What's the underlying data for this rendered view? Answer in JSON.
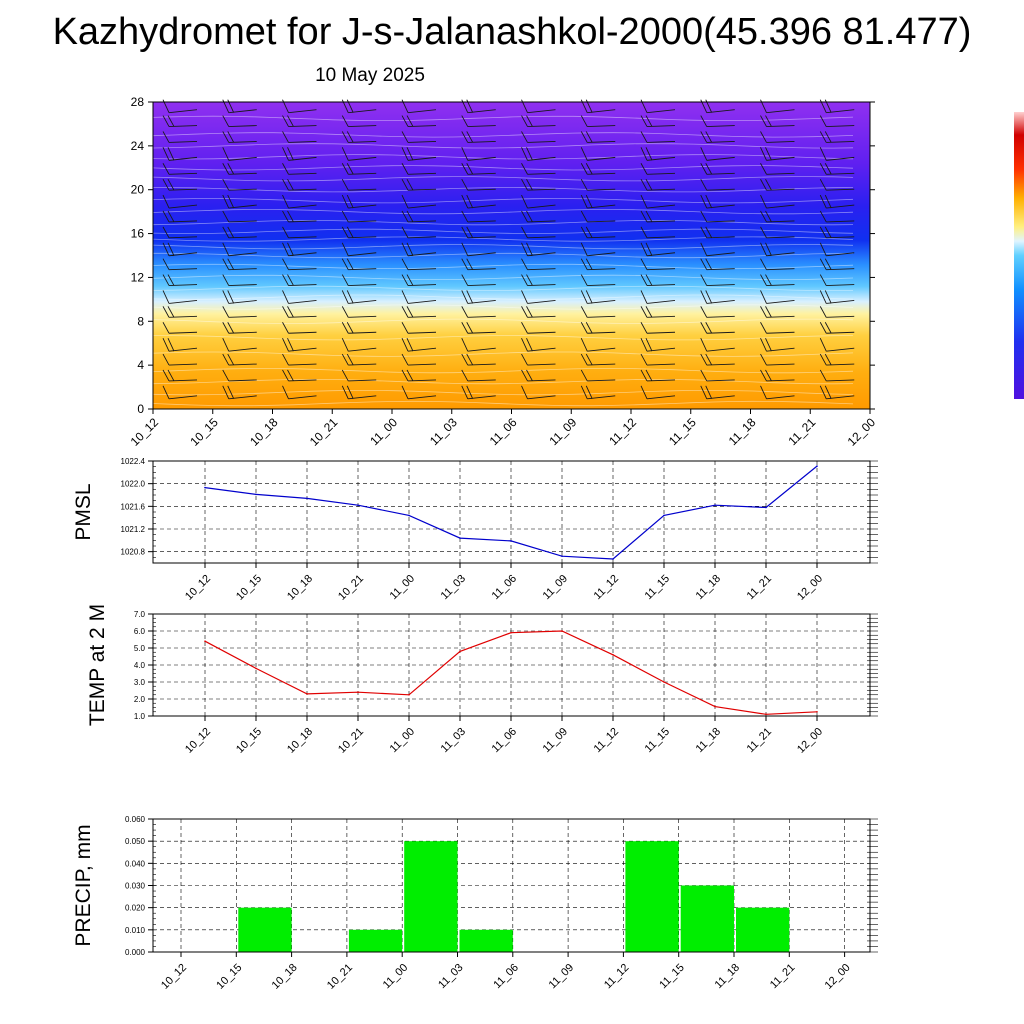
{
  "header": {
    "title": "Kazhydromet for J-s-Jalanashkol-2000(45.396 81.477)",
    "date": "10 May 2025"
  },
  "time_labels": [
    "10_12",
    "10_15",
    "10_18",
    "10_21",
    "11_00",
    "11_03",
    "11_06",
    "11_09",
    "11_12",
    "11_15",
    "11_18",
    "11_21",
    "12_00"
  ],
  "colors": {
    "pmsl_line": "#0000cc",
    "temp_line": "#e00000",
    "precip_bar": "#00ee00",
    "grid": "#000000"
  },
  "chart_data": [
    {
      "type": "heatmap",
      "title": "",
      "xlabel": "",
      "ylabel": "",
      "x": [
        "10_12",
        "10_15",
        "10_18",
        "10_21",
        "11_00",
        "11_03",
        "11_06",
        "11_09",
        "11_12",
        "11_15",
        "11_18",
        "11_21",
        "12_00"
      ],
      "y_ticks": [
        0,
        4,
        8,
        12,
        16,
        20,
        24,
        28
      ],
      "ylim": [
        0,
        28
      ],
      "overlay": "wind barbs",
      "colormap": [
        "orange",
        "yellow",
        "light-blue",
        "blue",
        "violet"
      ],
      "legend": "right colorbar"
    },
    {
      "type": "line",
      "ylabel": "PMSL",
      "categories": [
        "10_12",
        "10_15",
        "10_18",
        "10_21",
        "11_00",
        "11_03",
        "11_06",
        "11_09",
        "11_12",
        "11_15",
        "11_18",
        "11_21",
        "12_00"
      ],
      "values": [
        1021.93,
        1021.81,
        1021.74,
        1021.62,
        1021.44,
        1021.04,
        1020.99,
        1020.72,
        1020.67,
        1021.44,
        1021.62,
        1021.58,
        1022.31
      ],
      "ylim": [
        1020.6,
        1022.4
      ],
      "y_ticks": [
        "1020.8",
        "1021.2",
        "1021.6",
        "1022.0",
        "1022.4"
      ],
      "grid": true
    },
    {
      "type": "line",
      "ylabel": "TEMP at 2 M",
      "categories": [
        "10_12",
        "10_15",
        "10_18",
        "10_21",
        "11_00",
        "11_03",
        "11_06",
        "11_09",
        "11_12",
        "11_15",
        "11_18",
        "11_21",
        "12_00"
      ],
      "values": [
        5.4,
        3.8,
        2.3,
        2.4,
        2.25,
        4.8,
        5.9,
        6.0,
        4.6,
        3.0,
        1.55,
        1.1,
        1.25
      ],
      "ylim": [
        1.0,
        7.0
      ],
      "y_ticks": [
        "1.0",
        "2.0",
        "3.0",
        "4.0",
        "5.0",
        "6.0",
        "7.0"
      ],
      "grid": true
    },
    {
      "type": "bar",
      "ylabel": "PRECIP, mm",
      "categories": [
        "10_12",
        "10_15",
        "10_18",
        "10_21",
        "11_00",
        "11_03",
        "11_06",
        "11_09",
        "11_12",
        "11_15",
        "11_18",
        "11_21",
        "12_00"
      ],
      "values": [
        0,
        0.02,
        0,
        0.01,
        0.05,
        0.01,
        0,
        0,
        0.05,
        0.03,
        0.02,
        0,
        0
      ],
      "ylim": [
        0,
        0.06
      ],
      "y_ticks": [
        "0.000",
        "0.010",
        "0.020",
        "0.030",
        "0.040",
        "0.050",
        "0.060"
      ],
      "grid": true
    }
  ]
}
